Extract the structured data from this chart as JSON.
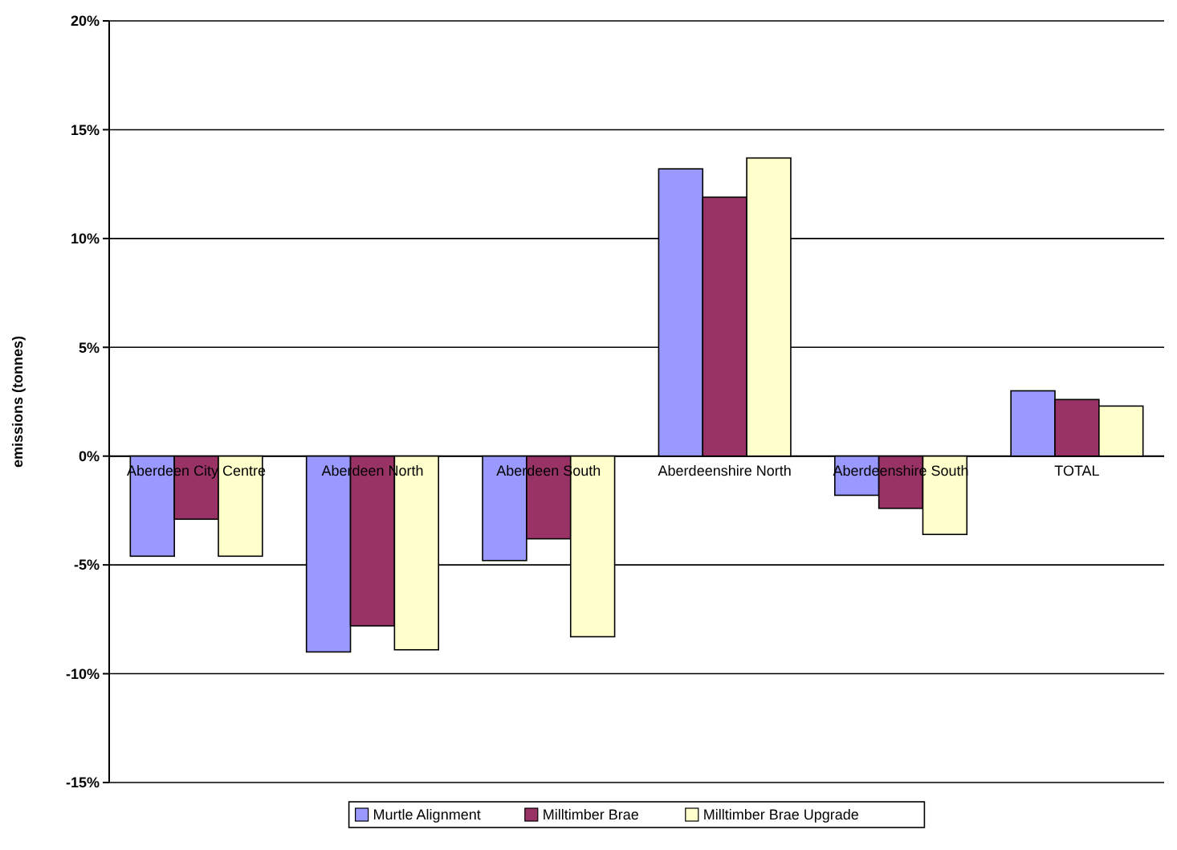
{
  "chart_data": {
    "type": "bar",
    "ylabel": "emissions (tonnes)",
    "categories": [
      "Aberdeen City Centre",
      "Aberdeen North",
      "Aberdeen South",
      "Aberdeenshire North",
      "Aberdeenshire South",
      "TOTAL"
    ],
    "series": [
      {
        "name": "Murtle Alignment",
        "color": "#9999ff",
        "values": [
          -4.6,
          -9.0,
          -4.8,
          13.2,
          -1.8,
          3.0
        ]
      },
      {
        "name": "Milltimber Brae",
        "color": "#993366",
        "values": [
          -2.9,
          -7.8,
          -3.8,
          11.9,
          -2.4,
          2.6
        ]
      },
      {
        "name": "Milltimber Brae Upgrade",
        "color": "#ffffcc",
        "values": [
          -4.6,
          -8.9,
          -8.3,
          13.7,
          -3.6,
          2.3
        ]
      }
    ],
    "ylim": [
      -15,
      20
    ],
    "yticks": [
      {
        "value": -15,
        "label": "-15%"
      },
      {
        "value": -10,
        "label": "-10%"
      },
      {
        "value": -5,
        "label": "-5%"
      },
      {
        "value": 0,
        "label": "0%"
      },
      {
        "value": 5,
        "label": "5%"
      },
      {
        "value": 10,
        "label": "10%"
      },
      {
        "value": 15,
        "label": "15%"
      },
      {
        "value": 20,
        "label": "20%"
      }
    ],
    "grid": "y",
    "legend": "bottom"
  }
}
